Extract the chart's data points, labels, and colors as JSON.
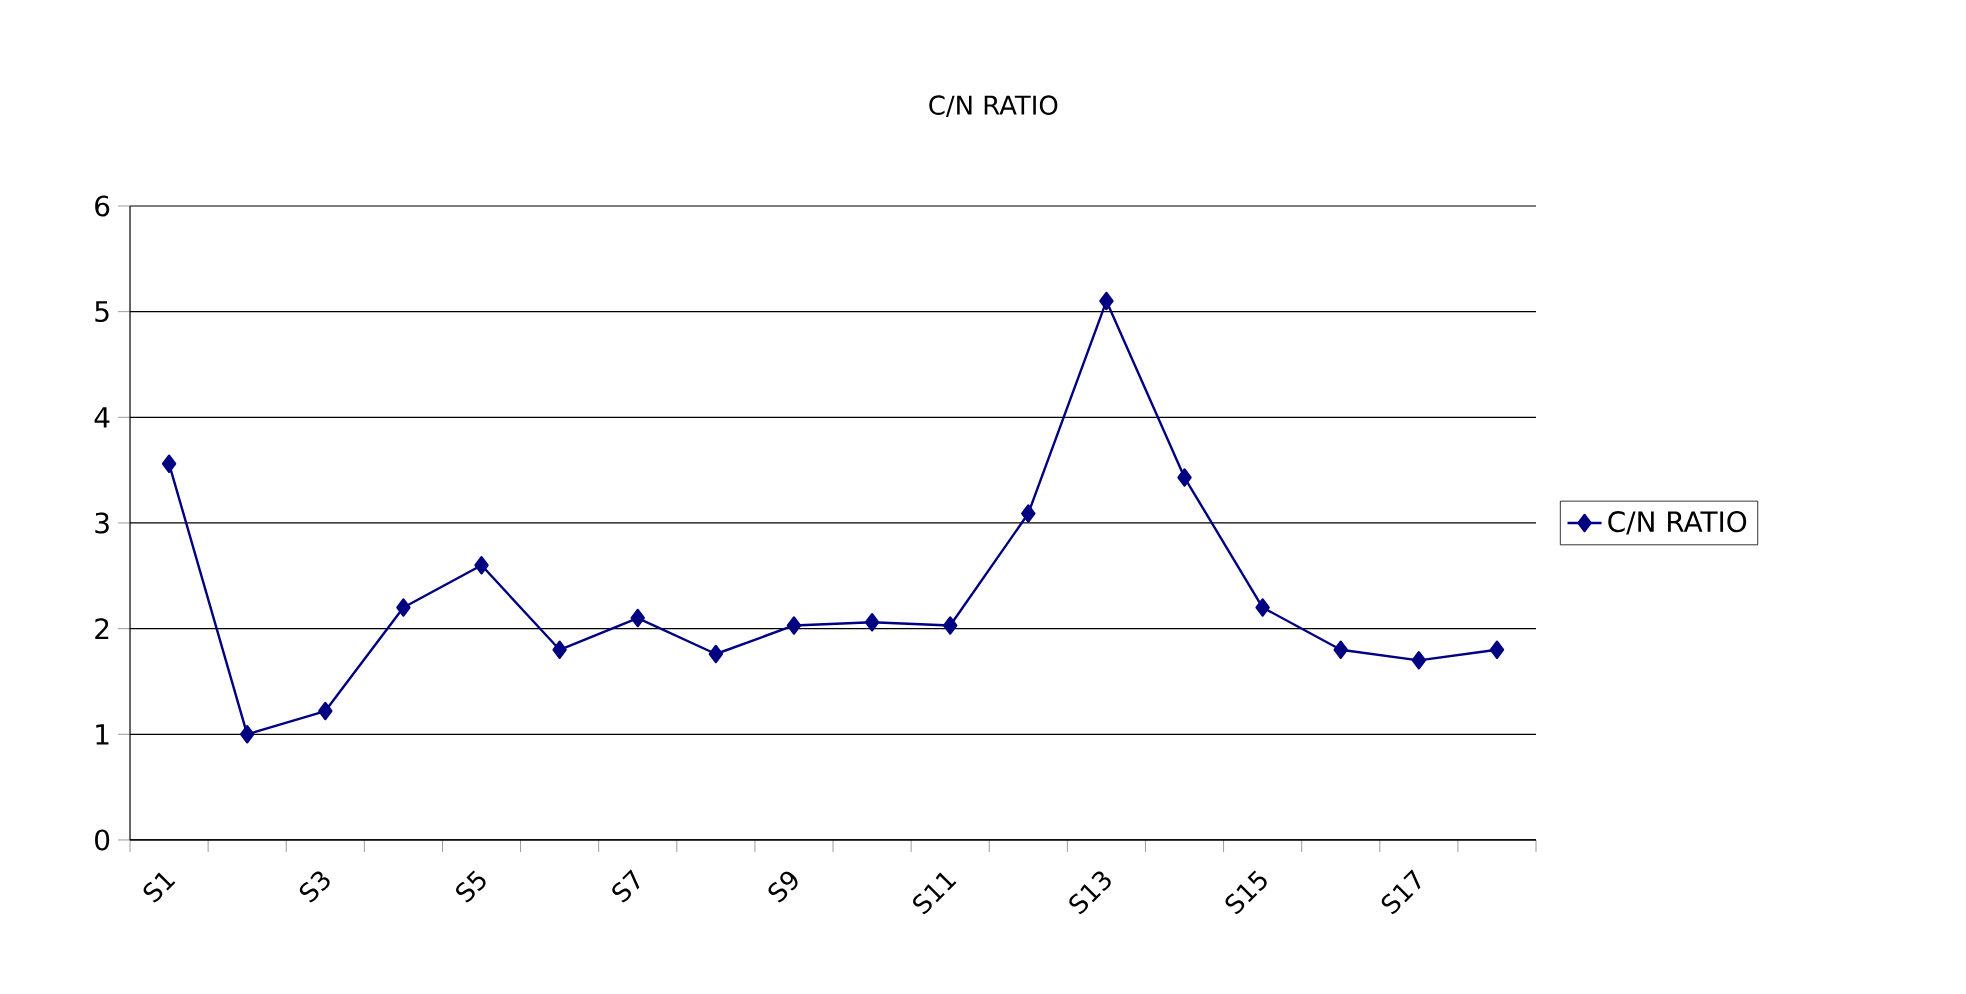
{
  "chart_data": {
    "type": "line",
    "title": "C/N RATIO",
    "categories": [
      "S1",
      null,
      "S3",
      null,
      "S5",
      null,
      "S7",
      null,
      "S9",
      null,
      "S11",
      null,
      "S13",
      null,
      "S15",
      null,
      "S17",
      null
    ],
    "series": [
      {
        "name": "C/N RATIO",
        "color": "#000080",
        "values": [
          3.56,
          1.0,
          1.22,
          2.2,
          2.6,
          1.8,
          2.1,
          1.76,
          2.03,
          2.06,
          2.03,
          3.09,
          5.1,
          3.43,
          2.2,
          1.8,
          1.7,
          1.8
        ]
      }
    ],
    "ylim": [
      0,
      6
    ],
    "yticks": [
      0,
      1,
      2,
      3,
      4,
      5,
      6
    ],
    "grid": "y",
    "legend": "right",
    "marker": "diamond",
    "line_style": "solid"
  }
}
